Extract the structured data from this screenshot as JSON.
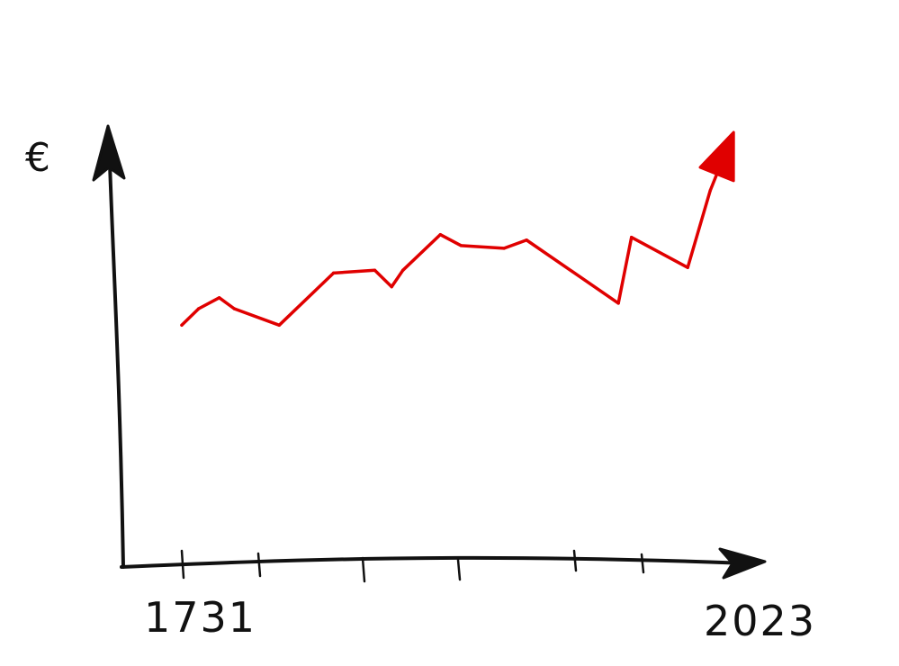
{
  "chart_data": {
    "type": "line",
    "title": "",
    "ylabel": "€",
    "xlabel": "",
    "x_start_label": "1731",
    "x_end_label": "2023",
    "xlim": [
      1731,
      2023
    ],
    "ylim": [
      0,
      100
    ],
    "grid": false,
    "legend": "none",
    "line_color": "#e00000",
    "axis_color": "#111111",
    "series": [
      {
        "x": [
          1731,
          1740,
          1751,
          1759,
          1783,
          1812,
          1834,
          1843,
          1849,
          1869,
          1880,
          1903,
          1915,
          1964,
          1971,
          2001,
          2013,
          2023
        ],
        "values": [
          34,
          40,
          44,
          40,
          34,
          53,
          54,
          48,
          54,
          67,
          63,
          62,
          65,
          42,
          66,
          55,
          83,
          100
        ]
      }
    ]
  }
}
